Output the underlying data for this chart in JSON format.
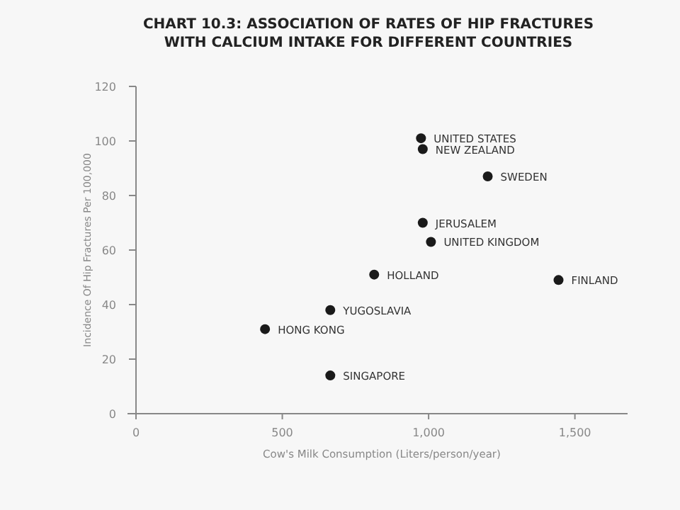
{
  "chart_data": {
    "type": "scatter",
    "title": "CHART 10.3: ASSOCIATION OF RATES OF HIP FRACTURES\nWITH CALCIUM INTAKE FOR DIFFERENT COUNTRIES",
    "xlabel": "Cow's Milk Consumption (Liters/person/year)",
    "ylabel": "Incidence Of Hip Fractures Per 100,000",
    "series": [
      {
        "color": "#1a1a1a",
        "x": [
          974,
          980,
          1202,
          980,
          1008,
          814,
          1444,
          664,
          441,
          664
        ],
        "values": [
          101,
          97,
          87,
          70,
          63,
          51,
          49,
          38,
          31,
          14
        ]
      }
    ],
    "annotations": [
      {
        "text": "UNITED STATES",
        "x": 974,
        "y": 101
      },
      {
        "text": "NEW ZEALAND",
        "x": 980,
        "y": 97
      },
      {
        "text": "SWEDEN",
        "x": 1202,
        "y": 87
      },
      {
        "text": "JERUSALEM",
        "x": 980,
        "y": 70
      },
      {
        "text": "UNITED KINGDOM",
        "x": 1008,
        "y": 63
      },
      {
        "text": "HOLLAND",
        "x": 814,
        "y": 51
      },
      {
        "text": "FINLAND",
        "x": 1444,
        "y": 49
      },
      {
        "text": "YUGOSLAVIA",
        "x": 664,
        "y": 38
      },
      {
        "text": "HONG KONG",
        "x": 441,
        "y": 31
      },
      {
        "text": "SINGAPORE",
        "x": 664,
        "y": 14
      }
    ],
    "xlim": [
      0,
      1680
    ],
    "xticks": [
      0,
      500,
      {
        "value": 1000,
        "label": "1,000"
      },
      {
        "value": 1500,
        "label": "1,500"
      }
    ],
    "ylim": [
      0,
      120
    ],
    "yticks": [
      0,
      20,
      40,
      60,
      80,
      100,
      120
    ],
    "grid": false,
    "marker": "circle"
  }
}
